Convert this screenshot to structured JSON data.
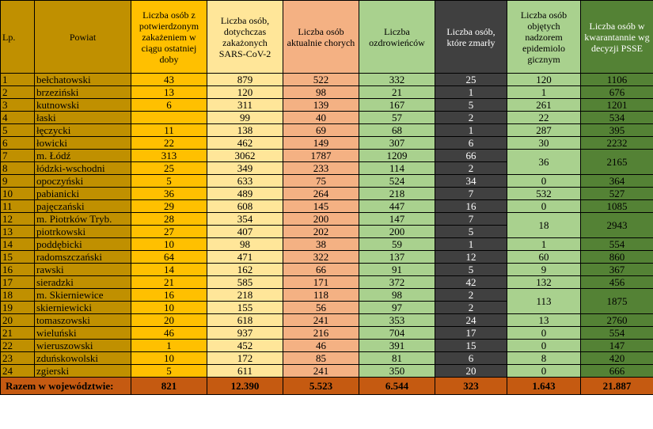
{
  "headers": {
    "lp": "Lp.",
    "powiat": "Powiat",
    "col1": "Liczba osób z potwierdzonym zakażeniem w ciągu ostatniej doby",
    "col2": "Liczba osób, dotychczas zakażonych SARS-CoV-2",
    "col3": "Liczba osób aktualnie chorych",
    "col4": "Liczba ozdrowieńców",
    "col5": "Liczba osób, które zmarły",
    "col6": "Liczba osób objętych nadzorem epidemiolo gicznym",
    "col7": "Liczba osób w kwarantannie wg decyzji PSSE"
  },
  "rows": [
    {
      "lp": "1",
      "powiat": "bełchatowski",
      "c1": "43",
      "c2": "879",
      "c3": "522",
      "c4": "332",
      "c5": "25",
      "c6": "120",
      "c7": "1106"
    },
    {
      "lp": "2",
      "powiat": "brzeziński",
      "c1": "13",
      "c2": "120",
      "c3": "98",
      "c4": "21",
      "c5": "1",
      "c6": "1",
      "c7": "676"
    },
    {
      "lp": "3",
      "powiat": "kutnowski",
      "c1": "6",
      "c2": "311",
      "c3": "139",
      "c4": "167",
      "c5": "5",
      "c6": "261",
      "c7": "1201"
    },
    {
      "lp": "4",
      "powiat": "łaski",
      "c1": "",
      "c2": "99",
      "c3": "40",
      "c4": "57",
      "c5": "2",
      "c6": "22",
      "c7": "534"
    },
    {
      "lp": "5",
      "powiat": "łęczycki",
      "c1": "11",
      "c2": "138",
      "c3": "69",
      "c4": "68",
      "c5": "1",
      "c6": "287",
      "c7": "395"
    },
    {
      "lp": "6",
      "powiat": "łowicki",
      "c1": "22",
      "c2": "462",
      "c3": "149",
      "c4": "307",
      "c5": "6",
      "c6": "30",
      "c7": "2232"
    },
    {
      "lp": "7",
      "powiat": "m. Łódź",
      "c1": "313",
      "c2": "3062",
      "c3": "1787",
      "c4": "1209",
      "c5": "66",
      "c6": "36",
      "c7": "2165"
    },
    {
      "lp": "8",
      "powiat": "łódzki-wschodni",
      "c1": "25",
      "c2": "349",
      "c3": "233",
      "c4": "114",
      "c5": "2"
    },
    {
      "lp": "9",
      "powiat": "opoczyński",
      "c1": "5",
      "c2": "633",
      "c3": "75",
      "c4": "524",
      "c5": "34",
      "c6": "0",
      "c7": "364"
    },
    {
      "lp": "10",
      "powiat": "pabianicki",
      "c1": "36",
      "c2": "489",
      "c3": "264",
      "c4": "218",
      "c5": "7",
      "c6": "532",
      "c7": "527"
    },
    {
      "lp": "11",
      "powiat": "pajęczański",
      "c1": "29",
      "c2": "608",
      "c3": "145",
      "c4": "447",
      "c5": "16",
      "c6": "0",
      "c7": "1085"
    },
    {
      "lp": "12",
      "powiat": "m. Piotrków Tryb.",
      "c1": "28",
      "c2": "354",
      "c3": "200",
      "c4": "147",
      "c5": "7",
      "c6": "18",
      "c7": "2943"
    },
    {
      "lp": "13",
      "powiat": "piotrkowski",
      "c1": "27",
      "c2": "407",
      "c3": "202",
      "c4": "200",
      "c5": "5"
    },
    {
      "lp": "14",
      "powiat": "poddębicki",
      "c1": "10",
      "c2": "98",
      "c3": "38",
      "c4": "59",
      "c5": "1",
      "c6": "1",
      "c7": "554"
    },
    {
      "lp": "15",
      "powiat": "radomszczański",
      "c1": "64",
      "c2": "471",
      "c3": "322",
      "c4": "137",
      "c5": "12",
      "c6": "60",
      "c7": "860"
    },
    {
      "lp": "16",
      "powiat": "rawski",
      "c1": "14",
      "c2": "162",
      "c3": "66",
      "c4": "91",
      "c5": "5",
      "c6": "9",
      "c7": "367"
    },
    {
      "lp": "17",
      "powiat": "sieradzki",
      "c1": "21",
      "c2": "585",
      "c3": "171",
      "c4": "372",
      "c5": "42",
      "c6": "132",
      "c7": "456"
    },
    {
      "lp": "18",
      "powiat": "m. Skierniewice",
      "c1": "16",
      "c2": "218",
      "c3": "118",
      "c4": "98",
      "c5": "2",
      "c6": "113",
      "c7": "1875"
    },
    {
      "lp": "19",
      "powiat": "skierniewicki",
      "c1": "10",
      "c2": "155",
      "c3": "56",
      "c4": "97",
      "c5": "2"
    },
    {
      "lp": "20",
      "powiat": "tomaszowski",
      "c1": "20",
      "c2": "618",
      "c3": "241",
      "c4": "353",
      "c5": "24",
      "c6": "13",
      "c7": "2760"
    },
    {
      "lp": "21",
      "powiat": "wieluński",
      "c1": "46",
      "c2": "937",
      "c3": "216",
      "c4": "704",
      "c5": "17",
      "c6": "0",
      "c7": "554"
    },
    {
      "lp": "22",
      "powiat": "wieruszowski",
      "c1": "1",
      "c2": "452",
      "c3": "46",
      "c4": "391",
      "c5": "15",
      "c6": "0",
      "c7": "147"
    },
    {
      "lp": "23",
      "powiat": "zduńskowolski",
      "c1": "10",
      "c2": "172",
      "c3": "85",
      "c4": "81",
      "c5": "6",
      "c6": "8",
      "c7": "420"
    },
    {
      "lp": "24",
      "powiat": "zgierski",
      "c1": "5",
      "c2": "611",
      "c3": "241",
      "c4": "350",
      "c5": "20",
      "c6": "0",
      "c7": "666"
    }
  ],
  "total": {
    "label": "Razem w województwie:",
    "c1": "821",
    "c2": "12.390",
    "c3": "5.523",
    "c4": "6.544",
    "c5": "323",
    "c6": "1.643",
    "c7": "21.887"
  },
  "colors": {
    "lp_powiat": "#C09000",
    "col1": "#FFC000",
    "col2": "#FFE699",
    "col3": "#F4B183",
    "col4": "#A9D18E",
    "col5": "#404040",
    "col6": "#A9D18E",
    "col7": "#548235",
    "total_row": "#C55A11"
  }
}
